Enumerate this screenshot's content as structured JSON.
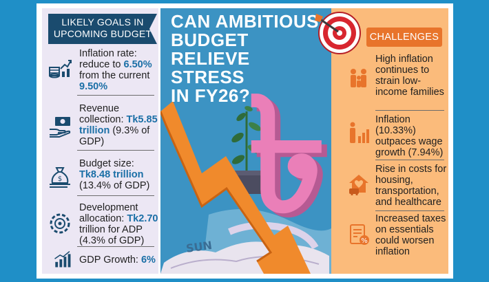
{
  "header": {
    "title_lines": [
      "CAN AMBITIOUS",
      "BUDGET RELIEVE",
      "STRESS",
      "IN FY26?"
    ]
  },
  "goals": {
    "heading_lines": [
      "LIKELY GOALS IN",
      "UPCOMING BUDGET"
    ],
    "items": [
      {
        "icon": "coins-chart-icon",
        "parts": [
          "Inflation rate:",
          " reduce to ",
          "6.50%",
          " from the current ",
          "9.50%"
        ]
      },
      {
        "icon": "cash-hand-icon",
        "parts": [
          "Revenue collection: ",
          "Tk5.85 trillion",
          " (9.3% of GDP)"
        ]
      },
      {
        "icon": "money-bag-icon",
        "parts": [
          "Budget size: ",
          "Tk8.48 trillion",
          " (13.4% of GDP)"
        ]
      },
      {
        "icon": "development-gear-icon",
        "parts": [
          "Development allocation: ",
          "Tk2.70",
          " trillion for ADP (4.3% of GDP)"
        ]
      },
      {
        "icon": "growth-chart-icon",
        "parts": [
          "GDP Growth: ",
          "6%"
        ]
      }
    ]
  },
  "challenges": {
    "heading": "CHALLENGES",
    "items": [
      {
        "icon": "family-icon",
        "text": "High inflation continues to strain low-income families"
      },
      {
        "icon": "wage-chart-icon",
        "text": "Inflation (10.33%) outpaces wage growth (7.94%)"
      },
      {
        "icon": "house-health-icon",
        "text": "Rise in costs for housing, transportation, and healthcare"
      },
      {
        "icon": "tax-document-icon",
        "text": "Increased taxes on essentials could worsen inflation"
      }
    ]
  },
  "illustration": {
    "currency_symbol": "৳",
    "paper_text": "SUN",
    "colors": {
      "arrow": "#f08a2c",
      "symbol": "#ea7fb8",
      "plant": "#2f6b3a",
      "target_red": "#d8262f"
    }
  }
}
